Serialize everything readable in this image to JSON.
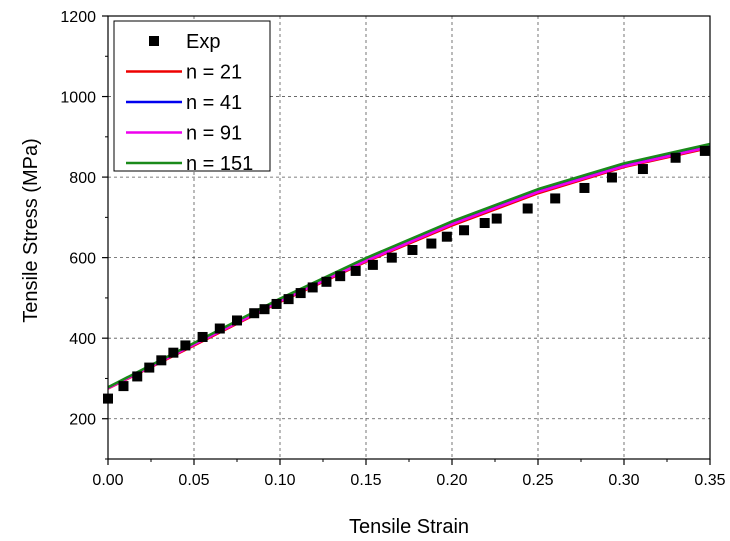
{
  "chart_data": {
    "type": "scatter",
    "title": "",
    "xlabel": "Tensile Strain",
    "ylabel": "Tensile Stress (MPa)",
    "xlim": [
      0.0,
      0.35
    ],
    "ylim": [
      100,
      1200
    ],
    "x_ticks": [
      "0.00",
      "0.05",
      "0.10",
      "0.15",
      "0.20",
      "0.25",
      "0.30",
      "0.35"
    ],
    "y_ticks": [
      "200",
      "400",
      "600",
      "800",
      "1000",
      "1200"
    ],
    "grid": true,
    "legend_position": "top-left",
    "series": [
      {
        "name": "Exp",
        "kind": "marker",
        "color": "#000000",
        "x": [
          0.0,
          0.009,
          0.017,
          0.024,
          0.031,
          0.038,
          0.045,
          0.055,
          0.065,
          0.075,
          0.085,
          0.091,
          0.098,
          0.105,
          0.112,
          0.119,
          0.127,
          0.135,
          0.144,
          0.154,
          0.165,
          0.177,
          0.188,
          0.197,
          0.207,
          0.219,
          0.226,
          0.244,
          0.26,
          0.277,
          0.293,
          0.311,
          0.33,
          0.347
        ],
        "y": [
          250,
          281,
          305,
          327,
          345,
          364,
          382,
          403,
          424,
          444,
          462,
          472,
          485,
          497,
          512,
          526,
          540,
          554,
          567,
          582,
          600,
          619,
          635,
          652,
          668,
          686,
          697,
          722,
          747,
          773,
          799,
          820,
          848,
          865
        ]
      },
      {
        "name": "n = 21",
        "kind": "line",
        "color": "#ee0000",
        "x": [
          0.0,
          0.05,
          0.1,
          0.15,
          0.2,
          0.25,
          0.3,
          0.35
        ],
        "y": [
          275,
          382,
          490,
          590,
          680,
          760,
          825,
          873
        ]
      },
      {
        "name": "n = 41",
        "kind": "line",
        "color": "#0000ee",
        "x": [
          0.0,
          0.05,
          0.1,
          0.15,
          0.2,
          0.25,
          0.3,
          0.35
        ],
        "y": [
          277,
          386,
          495,
          596,
          687,
          767,
          831,
          879
        ]
      },
      {
        "name": "n = 91",
        "kind": "line",
        "color": "#ee00ee",
        "x": [
          0.0,
          0.05,
          0.1,
          0.15,
          0.2,
          0.25,
          0.3,
          0.35
        ],
        "y": [
          276,
          384,
          492,
          592,
          683,
          763,
          827,
          875
        ]
      },
      {
        "name": "n = 151",
        "kind": "line",
        "color": "#1a8a1a",
        "x": [
          0.0,
          0.05,
          0.1,
          0.15,
          0.2,
          0.25,
          0.3,
          0.35
        ],
        "y": [
          278,
          388,
          498,
          599,
          690,
          770,
          834,
          882
        ]
      }
    ]
  }
}
